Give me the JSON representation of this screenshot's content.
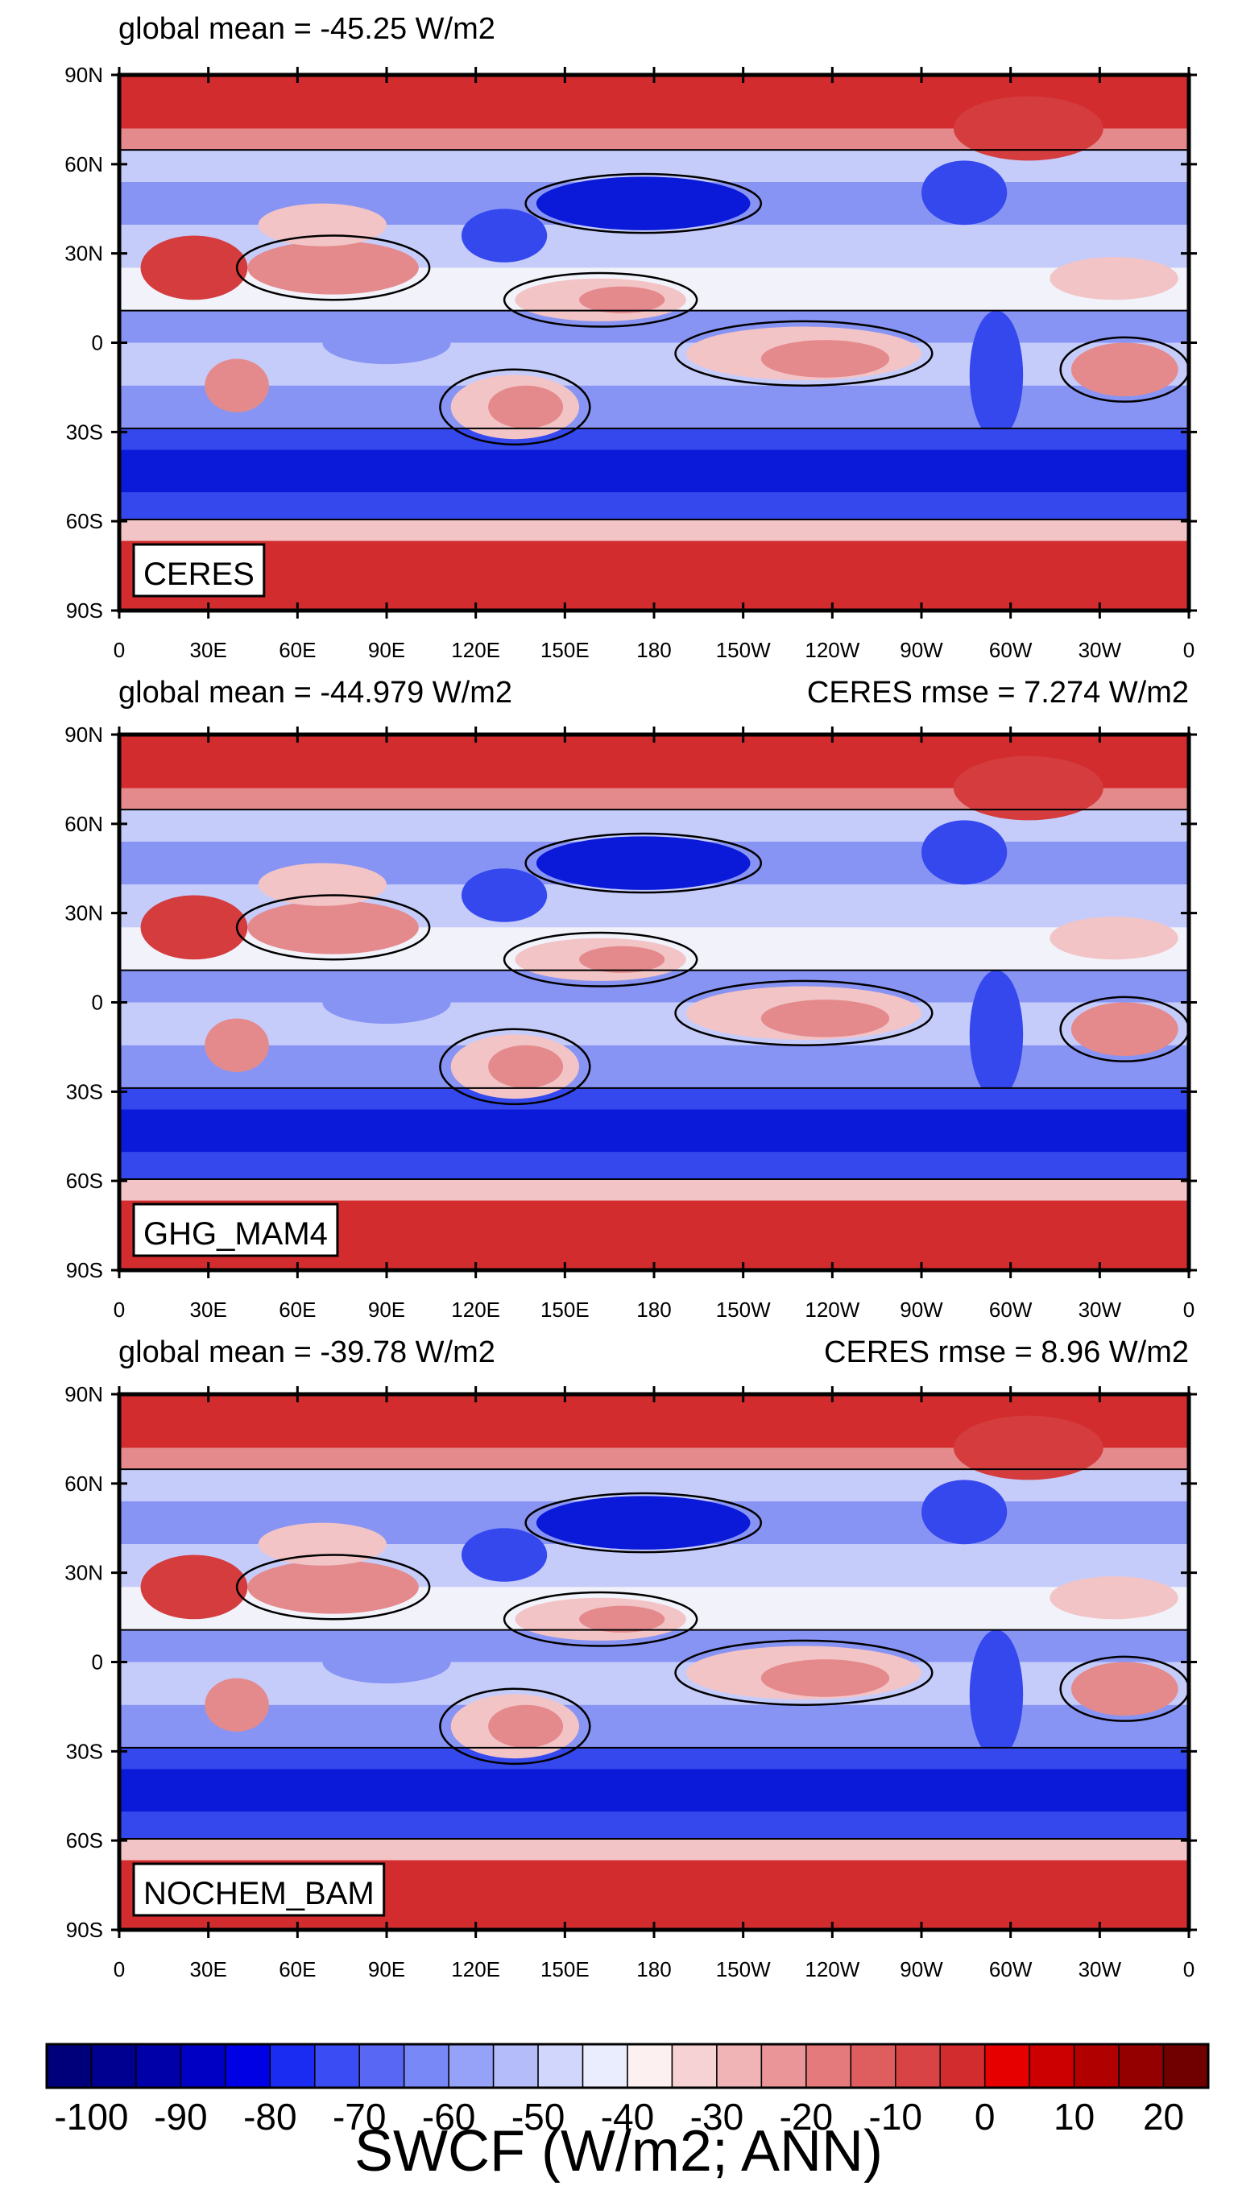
{
  "chart_data": [
    {
      "type": "heatmap",
      "panel_label": "CERES",
      "title_left": "global mean = -45.25 W/m2",
      "title_right": "",
      "y_ticks": [
        "90N",
        "60N",
        "30N",
        "0",
        "30S",
        "60S",
        "90S"
      ],
      "x_ticks": [
        "0",
        "30E",
        "60E",
        "90E",
        "120E",
        "150E",
        "180",
        "150W",
        "120W",
        "90W",
        "60W",
        "30W",
        "0"
      ],
      "lon_range": [
        0,
        360
      ],
      "lat_range": [
        -90,
        90
      ],
      "global_mean": -45.25
    },
    {
      "type": "heatmap",
      "panel_label": "GHG_MAM4",
      "title_left": "global mean = -44.979 W/m2",
      "title_right": "CERES rmse = 7.274 W/m2",
      "y_ticks": [
        "90N",
        "60N",
        "30N",
        "0",
        "30S",
        "60S",
        "90S"
      ],
      "x_ticks": [
        "0",
        "30E",
        "60E",
        "90E",
        "120E",
        "150E",
        "180",
        "150W",
        "120W",
        "90W",
        "60W",
        "30W",
        "0"
      ],
      "lon_range": [
        0,
        360
      ],
      "lat_range": [
        -90,
        90
      ],
      "global_mean": -44.979,
      "rmse": 7.274
    },
    {
      "type": "heatmap",
      "panel_label": "NOCHEM_BAM",
      "title_left": "global mean = -39.78 W/m2",
      "title_right": "CERES rmse = 8.96 W/m2",
      "y_ticks": [
        "90N",
        "60N",
        "30N",
        "0",
        "30S",
        "60S",
        "90S"
      ],
      "x_ticks": [
        "0",
        "30E",
        "60E",
        "90E",
        "120E",
        "150E",
        "180",
        "150W",
        "120W",
        "90W",
        "60W",
        "30W",
        "0"
      ],
      "lon_range": [
        0,
        360
      ],
      "lat_range": [
        -90,
        90
      ],
      "global_mean": -39.78,
      "rmse": 8.96
    }
  ],
  "colorbar": {
    "title": "SWCF (W/m2; ANN)",
    "levels": [
      -100,
      -95,
      -90,
      -85,
      -80,
      -75,
      -70,
      -65,
      -60,
      -55,
      -50,
      -45,
      -40,
      -35,
      -30,
      -25,
      -20,
      -15,
      -10,
      -5,
      0,
      5,
      10,
      15,
      20,
      25
    ],
    "colors": [
      "#00007a",
      "#000090",
      "#0000a8",
      "#0000c4",
      "#0000e4",
      "#1a2cf2",
      "#3a4cf4",
      "#5868f4",
      "#7888f6",
      "#96a2f8",
      "#b4bcfa",
      "#d0d6fc",
      "#eaedfe",
      "#fcf0f0",
      "#f6d2d4",
      "#f0b4b6",
      "#ea9698",
      "#e47a7c",
      "#de5e60",
      "#d84446",
      "#d22c2e",
      "#e60000",
      "#cc0000",
      "#b00000",
      "#940000",
      "#700000"
    ],
    "tick_labels": [
      "-100",
      "-90",
      "-80",
      "-70",
      "-60",
      "-50",
      "-40",
      "-30",
      "-20",
      "-10",
      "0",
      "10",
      "20"
    ]
  },
  "field_colors": {
    "deep_blue": "#0a1ad8",
    "mid_blue": "#3448ee",
    "light_blue": "#8894f4",
    "pale_blue": "#c6ccfa",
    "near_white": "#f2f2fb",
    "pale_red": "#f2c4c6",
    "mid_red": "#e48a8c",
    "strong_red": "#d43c3e",
    "polar_red": "#d22c2e",
    "contour": "#000000"
  }
}
